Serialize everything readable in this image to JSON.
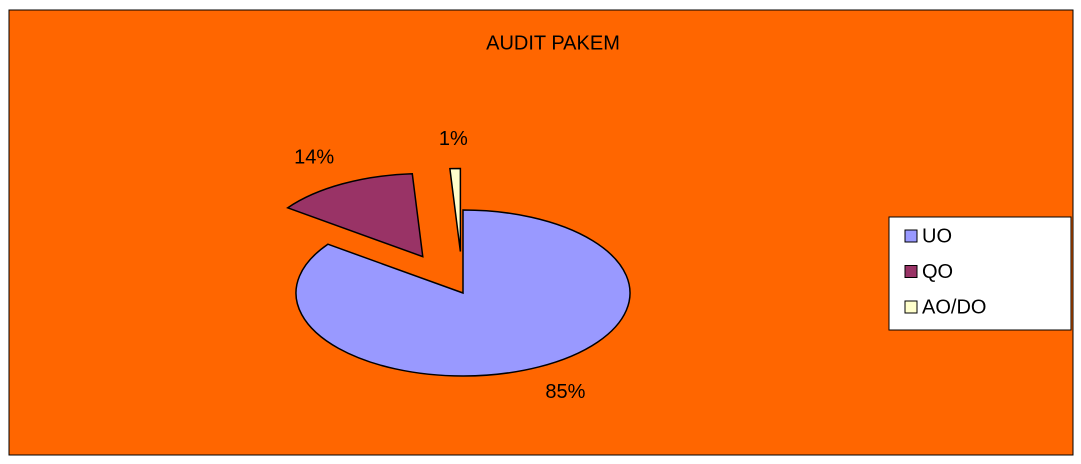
{
  "chart_data": {
    "type": "pie",
    "title": "AUDIT PAKEM",
    "categories": [
      "UO",
      "QO",
      "AO/DO"
    ],
    "values": [
      85,
      14,
      1
    ],
    "value_labels": [
      "85%",
      "14%",
      "1%"
    ],
    "colors": [
      "#9999ff",
      "#993366",
      "#ffffcc"
    ],
    "legend": "right"
  }
}
